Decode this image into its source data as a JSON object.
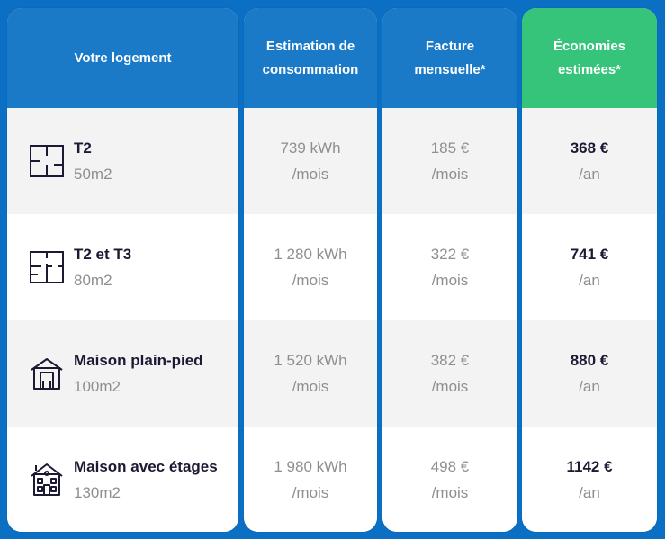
{
  "headers": {
    "logement": "Votre logement",
    "consommation_line1": "Estimation de",
    "consommation_line2": "consommation",
    "facture_line1": "Facture",
    "facture_line2": "mensuelle*",
    "economies_line1": "Économies",
    "economies_line2": "estimées*"
  },
  "colors": {
    "background": "#0b6fc4",
    "header_blue": "#1a7ac8",
    "header_green": "#35c47a",
    "row_alt": "#f4f3f4"
  },
  "rows": [
    {
      "icon": "floorplan-small-icon",
      "title": "T2",
      "size": "50m2",
      "conso_value": "739 kWh",
      "conso_unit": "/mois",
      "facture_value": "185 €",
      "facture_unit": "/mois",
      "eco_value": "368 €",
      "eco_unit": "/an"
    },
    {
      "icon": "floorplan-large-icon",
      "title": "T2 et T3",
      "size": "80m2",
      "conso_value": "1 280 kWh",
      "conso_unit": "/mois",
      "facture_value": "322 €",
      "facture_unit": "/mois",
      "eco_value": "741 €",
      "eco_unit": "/an"
    },
    {
      "icon": "single-storey-house-icon",
      "title": "Maison plain-pied",
      "size": "100m2",
      "conso_value": "1 520 kWh",
      "conso_unit": "/mois",
      "facture_value": "382 €",
      "facture_unit": "/mois",
      "eco_value": "880 €",
      "eco_unit": "/an"
    },
    {
      "icon": "multi-storey-house-icon",
      "title": "Maison avec étages",
      "size": "130m2",
      "conso_value": "1 980 kWh",
      "conso_unit": "/mois",
      "facture_value": "498 €",
      "facture_unit": "/mois",
      "eco_value": "1142 €",
      "eco_unit": "/an"
    }
  ]
}
